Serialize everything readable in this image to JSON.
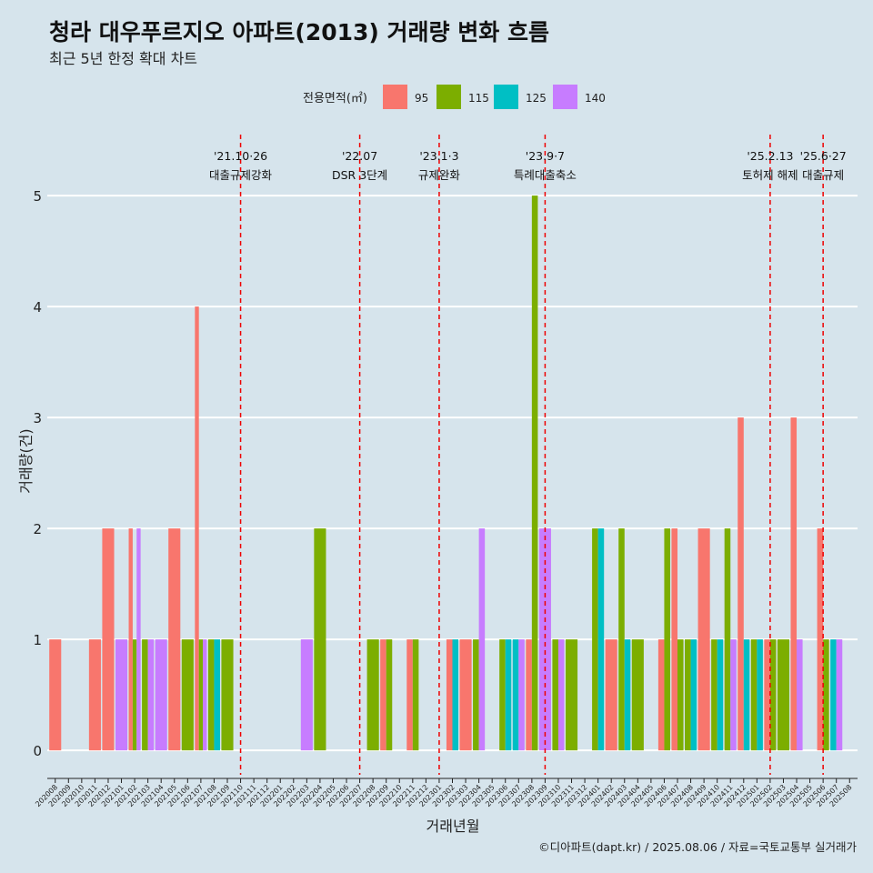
{
  "chart_data": {
    "type": "bar",
    "title": "청라 대우푸르지오 아파트(2013) 거래량 변화 흐름",
    "subtitle": "최근 5년 한정 확대 차트",
    "xlabel": "거래년월",
    "ylabel": "거래량(건)",
    "ylim": [
      -0.22,
      5.55
    ],
    "yticks": [
      0,
      1,
      2,
      3,
      4,
      5
    ],
    "grid": true,
    "legend": {
      "title": "전용면적(㎡)",
      "position": "top",
      "entries": [
        {
          "name": "95",
          "color": "#f8766d"
        },
        {
          "name": "115",
          "color": "#7cae00"
        },
        {
          "name": "125",
          "color": "#00bfc4"
        },
        {
          "name": "140",
          "color": "#c77cff"
        }
      ]
    },
    "categories": [
      "202008",
      "202009",
      "202010",
      "202011",
      "202012",
      "202101",
      "202102",
      "202103",
      "202104",
      "202105",
      "202106",
      "202107",
      "202108",
      "202109",
      "202110",
      "202111",
      "202112",
      "202201",
      "202202",
      "202203",
      "202204",
      "202205",
      "202206",
      "202207",
      "202208",
      "202209",
      "202210",
      "202211",
      "202212",
      "202301",
      "202302",
      "202303",
      "202304",
      "202305",
      "202306",
      "202307",
      "202308",
      "202309",
      "202310",
      "202311",
      "202312",
      "202401",
      "202402",
      "202403",
      "202404",
      "202405",
      "202406",
      "202407",
      "202408",
      "202409",
      "202410",
      "202411",
      "202412",
      "202501",
      "202502",
      "202503",
      "202504",
      "202505",
      "202506",
      "202507",
      "202508"
    ],
    "bars": [
      {
        "month": "202008",
        "groups": [
          {
            "size": "95",
            "value": 1
          }
        ]
      },
      {
        "month": "202011",
        "groups": [
          {
            "size": "95",
            "value": 1
          }
        ]
      },
      {
        "month": "202012",
        "groups": [
          {
            "size": "95",
            "value": 2
          }
        ]
      },
      {
        "month": "202101",
        "groups": [
          {
            "size": "140",
            "value": 1
          }
        ]
      },
      {
        "month": "202102",
        "groups": [
          {
            "size": "95",
            "value": 2
          },
          {
            "size": "115",
            "value": 1
          },
          {
            "size": "140",
            "value": 2
          }
        ]
      },
      {
        "month": "202103",
        "groups": [
          {
            "size": "115",
            "value": 1
          },
          {
            "size": "140",
            "value": 1
          }
        ]
      },
      {
        "month": "202104",
        "groups": [
          {
            "size": "140",
            "value": 1
          }
        ]
      },
      {
        "month": "202105",
        "groups": [
          {
            "size": "95",
            "value": 2
          }
        ]
      },
      {
        "month": "202106",
        "groups": [
          {
            "size": "115",
            "value": 1
          }
        ]
      },
      {
        "month": "202107",
        "groups": [
          {
            "size": "95",
            "value": 4
          },
          {
            "size": "115",
            "value": 1
          },
          {
            "size": "140",
            "value": 1
          }
        ]
      },
      {
        "month": "202108",
        "groups": [
          {
            "size": "115",
            "value": 1
          },
          {
            "size": "125",
            "value": 1
          }
        ]
      },
      {
        "month": "202109",
        "groups": [
          {
            "size": "115",
            "value": 1
          }
        ]
      },
      {
        "month": "202203",
        "groups": [
          {
            "size": "140",
            "value": 1
          }
        ]
      },
      {
        "month": "202204",
        "groups": [
          {
            "size": "115",
            "value": 2
          }
        ]
      },
      {
        "month": "202208",
        "groups": [
          {
            "size": "115",
            "value": 1
          }
        ]
      },
      {
        "month": "202209",
        "groups": [
          {
            "size": "95",
            "value": 1
          },
          {
            "size": "115",
            "value": 1
          }
        ]
      },
      {
        "month": "202211",
        "groups": [
          {
            "size": "95",
            "value": 1
          },
          {
            "size": "115",
            "value": 1
          }
        ]
      },
      {
        "month": "202302",
        "groups": [
          {
            "size": "95",
            "value": 1
          },
          {
            "size": "125",
            "value": 1
          }
        ]
      },
      {
        "month": "202303",
        "groups": [
          {
            "size": "95",
            "value": 1
          }
        ]
      },
      {
        "month": "202304",
        "groups": [
          {
            "size": "115",
            "value": 1
          },
          {
            "size": "140",
            "value": 2
          }
        ]
      },
      {
        "month": "202306",
        "groups": [
          {
            "size": "115",
            "value": 1
          },
          {
            "size": "125",
            "value": 1
          }
        ]
      },
      {
        "month": "202307",
        "groups": [
          {
            "size": "125",
            "value": 1
          },
          {
            "size": "140",
            "value": 1
          }
        ]
      },
      {
        "month": "202308",
        "groups": [
          {
            "size": "95",
            "value": 1
          },
          {
            "size": "115",
            "value": 5
          }
        ]
      },
      {
        "month": "202309",
        "groups": [
          {
            "size": "140",
            "value": 2
          }
        ]
      },
      {
        "month": "202310",
        "groups": [
          {
            "size": "115",
            "value": 1
          },
          {
            "size": "140",
            "value": 1
          }
        ]
      },
      {
        "month": "202311",
        "groups": [
          {
            "size": "115",
            "value": 1
          }
        ]
      },
      {
        "month": "202401",
        "groups": [
          {
            "size": "115",
            "value": 2
          },
          {
            "size": "125",
            "value": 2
          }
        ]
      },
      {
        "month": "202402",
        "groups": [
          {
            "size": "95",
            "value": 1
          }
        ]
      },
      {
        "month": "202403",
        "groups": [
          {
            "size": "115",
            "value": 2
          },
          {
            "size": "125",
            "value": 1
          }
        ]
      },
      {
        "month": "202404",
        "groups": [
          {
            "size": "115",
            "value": 1
          }
        ]
      },
      {
        "month": "202406",
        "groups": [
          {
            "size": "95",
            "value": 1
          },
          {
            "size": "115",
            "value": 2
          }
        ]
      },
      {
        "month": "202407",
        "groups": [
          {
            "size": "95",
            "value": 2
          },
          {
            "size": "115",
            "value": 1
          }
        ]
      },
      {
        "month": "202408",
        "groups": [
          {
            "size": "115",
            "value": 1
          },
          {
            "size": "125",
            "value": 1
          }
        ]
      },
      {
        "month": "202409",
        "groups": [
          {
            "size": "95",
            "value": 2
          }
        ]
      },
      {
        "month": "202410",
        "groups": [
          {
            "size": "115",
            "value": 1
          },
          {
            "size": "125",
            "value": 1
          }
        ]
      },
      {
        "month": "202411",
        "groups": [
          {
            "size": "115",
            "value": 2
          },
          {
            "size": "140",
            "value": 1
          }
        ]
      },
      {
        "month": "202412",
        "groups": [
          {
            "size": "95",
            "value": 3
          },
          {
            "size": "125",
            "value": 1
          }
        ]
      },
      {
        "month": "202501",
        "groups": [
          {
            "size": "115",
            "value": 1
          },
          {
            "size": "125",
            "value": 1
          }
        ]
      },
      {
        "month": "202502",
        "groups": [
          {
            "size": "95",
            "value": 1
          },
          {
            "size": "115",
            "value": 1
          }
        ]
      },
      {
        "month": "202503",
        "groups": [
          {
            "size": "115",
            "value": 1
          }
        ]
      },
      {
        "month": "202504",
        "groups": [
          {
            "size": "95",
            "value": 3
          },
          {
            "size": "140",
            "value": 1
          }
        ]
      },
      {
        "month": "202506",
        "groups": [
          {
            "size": "95",
            "value": 2
          },
          {
            "size": "115",
            "value": 1
          }
        ]
      },
      {
        "month": "202507",
        "groups": [
          {
            "size": "125",
            "value": 1
          },
          {
            "size": "140",
            "value": 1
          }
        ]
      }
    ],
    "events": [
      {
        "month": "202110",
        "line1": "'21.10·26",
        "line2": "대출규제강화"
      },
      {
        "month": "202207",
        "line1": "'22.07",
        "line2": "DSR 3단계"
      },
      {
        "month": "202301",
        "line1": "'23.1·3",
        "line2": "규제완화"
      },
      {
        "month": "202309",
        "line1": "'23.9·7",
        "line2": "특례대출축소"
      },
      {
        "month": "202502",
        "line1": "'25.2.13",
        "line2": "토허제 해제"
      },
      {
        "month": "202506",
        "line1": "'25.6·27",
        "line2": "대출규제"
      }
    ],
    "event_color": "#ee0000"
  },
  "caption": "©디아파트(dapt.kr) / 2025.08.06 / 자료=국토교통부 실거래가"
}
